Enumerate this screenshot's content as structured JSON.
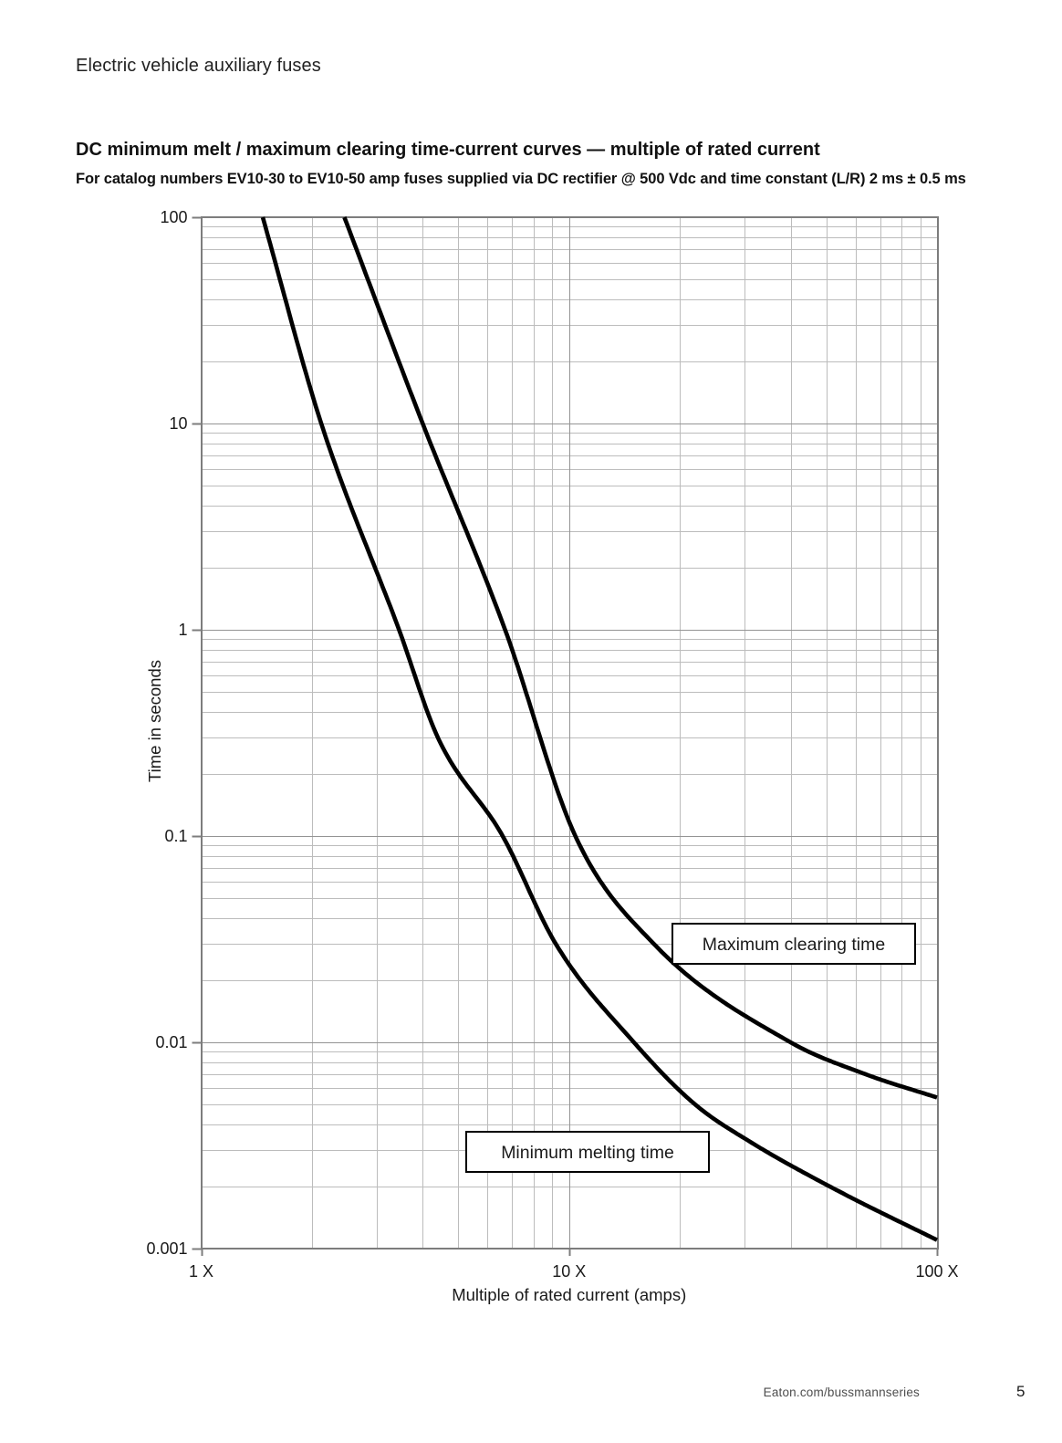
{
  "page": {
    "header": "Electric vehicle auxiliary fuses",
    "footer": {
      "site": "Eaton.com/bussmannseries",
      "page_number": "5"
    }
  },
  "chart": {
    "title": "DC minimum melt / maximum clearing time-current curves — multiple of rated current",
    "subtitle": "For catalog numbers EV10-30 to EV10-50 amp fuses supplied via DC rectifier @ 500 Vdc and time constant (L/R) 2 ms ± 0.5 ms"
  },
  "chart_data": {
    "type": "line",
    "x_scale": "log",
    "y_scale": "log",
    "xlabel": "Multiple of rated current (amps)",
    "ylabel": "Time in seconds",
    "xlim": [
      1,
      100
    ],
    "ylim": [
      0.001,
      100
    ],
    "x_ticks": [
      1,
      10,
      100
    ],
    "x_tick_labels": [
      "1 X",
      "10 X",
      "100 X"
    ],
    "y_ticks": [
      100,
      10,
      1,
      0.1,
      0.01,
      0.001
    ],
    "y_tick_labels": [
      "100",
      "10",
      "1",
      "0.1",
      "0.01",
      "0.001"
    ],
    "grid": "log minor + major, boxed plot area",
    "colors": {
      "curve": "#000000",
      "grid_minor": "#bcbcbc",
      "grid_major": "#949494",
      "border": "#7d7d7d"
    },
    "series": [
      {
        "name": "Minimum melting time",
        "multiple_of_rated_current": [
          1.47,
          2.12,
          3.45,
          4.4,
          6.6,
          9.2,
          15,
          22,
          31,
          54,
          100
        ],
        "time_seconds": [
          100,
          10,
          1,
          0.3,
          0.1,
          0.03,
          0.01,
          0.005,
          0.0033,
          0.0019,
          0.0011
        ]
      },
      {
        "name": "Maximum clearing time",
        "multiple_of_rated_current": [
          2.45,
          4.0,
          6.7,
          10.4,
          17,
          40,
          64,
          100
        ],
        "time_seconds": [
          100,
          10,
          1,
          0.1,
          0.03,
          0.01,
          0.007,
          0.0054
        ]
      }
    ],
    "annotations": [
      {
        "text": "Maximum clearing time",
        "series": "Maximum clearing time"
      },
      {
        "text": "Minimum melting time",
        "series": "Minimum melting time"
      }
    ]
  }
}
